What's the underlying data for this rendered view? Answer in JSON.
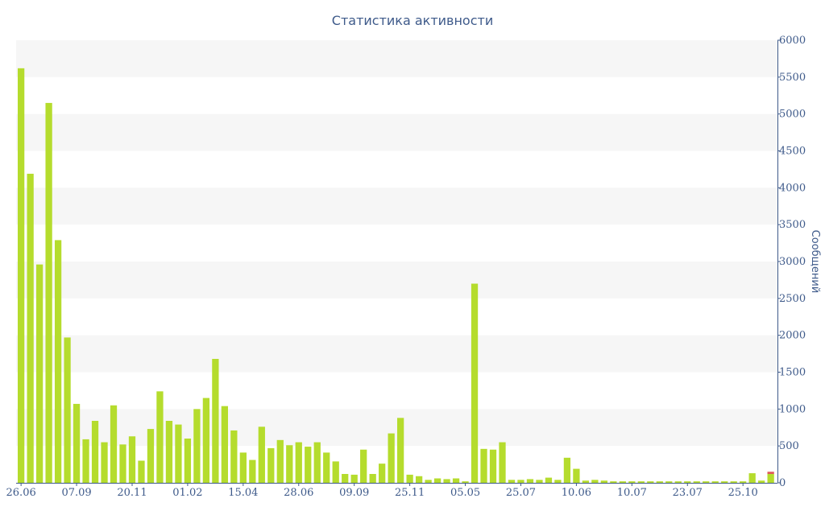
{
  "chart_data": {
    "type": "bar",
    "title": "Статистика активности",
    "xlabel": "",
    "ylabel": "Сообщений",
    "ylim": [
      0,
      6000
    ],
    "y_ticks": [
      0,
      500,
      1000,
      1500,
      2000,
      2500,
      3000,
      3500,
      4000,
      4500,
      5000,
      5500,
      6000
    ],
    "y_axis_side": "right",
    "grid": "alternating horizontal bands",
    "x_tick_labels": [
      "26.06",
      "07.09",
      "20.11",
      "01.02",
      "15.04",
      "28.06",
      "09.09",
      "25.11",
      "05.05",
      "25.07",
      "10.06",
      "10.07",
      "23.07",
      "25.10"
    ],
    "x_tick_label_bar_index": [
      0,
      6,
      12,
      18,
      24,
      30,
      36,
      42,
      48,
      54,
      60,
      66,
      72,
      78
    ],
    "bar_count": 82,
    "series": [
      {
        "color": "#b5dc2d",
        "values": [
          5620,
          4190,
          2960,
          5150,
          3290,
          1970,
          1070,
          590,
          840,
          550,
          1050,
          520,
          630,
          300,
          730,
          1240,
          840,
          790,
          600,
          1000,
          1150,
          1680,
          1040,
          710,
          410,
          310,
          760,
          470,
          580,
          510,
          550,
          490,
          550,
          410,
          290,
          120,
          110,
          450,
          120,
          260,
          670,
          880,
          110,
          90,
          40,
          60,
          50,
          60,
          20,
          2700,
          460,
          450,
          550,
          40,
          40,
          50,
          40,
          70,
          40,
          340,
          190,
          30,
          40,
          30,
          20,
          20,
          20,
          20,
          20,
          20,
          20,
          20,
          20,
          20,
          20,
          20,
          20,
          20,
          20,
          130,
          30,
          120
        ]
      },
      {
        "color": "#e05a5a",
        "values": [
          0,
          0,
          0,
          0,
          0,
          0,
          0,
          0,
          0,
          0,
          0,
          0,
          0,
          0,
          0,
          0,
          0,
          0,
          0,
          0,
          0,
          0,
          0,
          0,
          0,
          0,
          0,
          0,
          0,
          0,
          0,
          0,
          0,
          0,
          0,
          0,
          0,
          0,
          0,
          0,
          0,
          0,
          0,
          0,
          0,
          0,
          0,
          0,
          0,
          0,
          0,
          0,
          0,
          0,
          0,
          0,
          0,
          0,
          0,
          0,
          0,
          0,
          0,
          0,
          0,
          0,
          0,
          0,
          0,
          0,
          0,
          0,
          0,
          0,
          0,
          0,
          0,
          0,
          0,
          0,
          0,
          30
        ]
      }
    ]
  }
}
